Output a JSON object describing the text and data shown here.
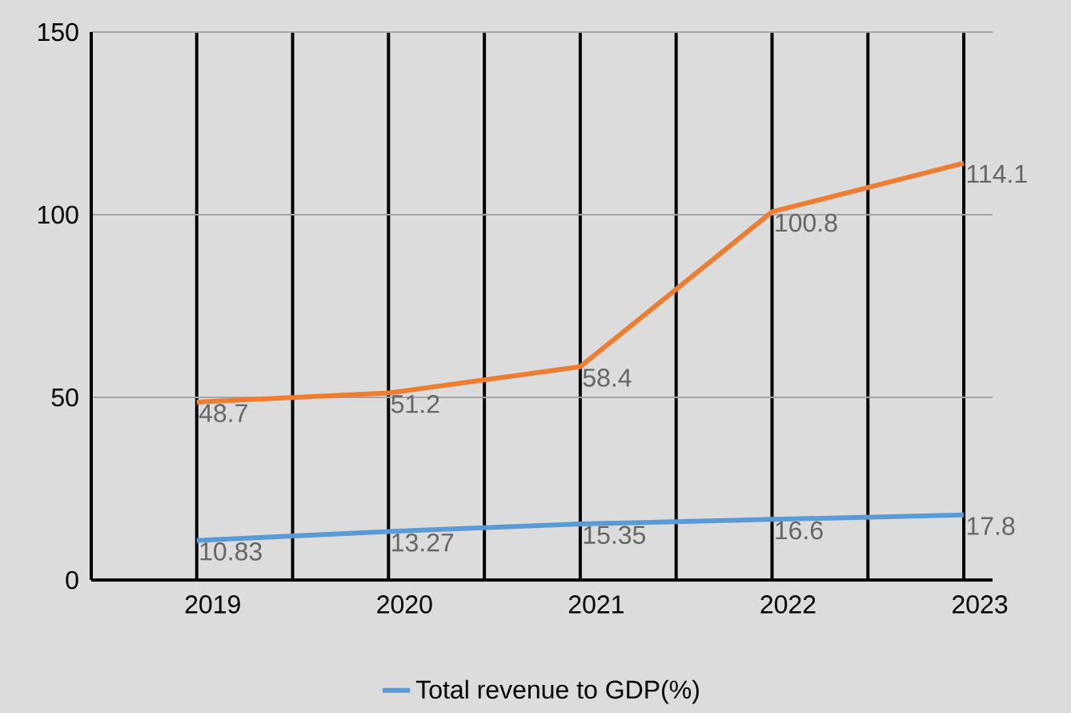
{
  "chart_data": {
    "type": "line",
    "categories": [
      "2019",
      "2020",
      "2021",
      "2022",
      "2023"
    ],
    "series": [
      {
        "color": "#ed7d31",
        "values": [
          48.7,
          51.2,
          58.4,
          100.8,
          114.1
        ]
      },
      {
        "name": "Total revenue to GDP(%)",
        "color": "#5b9bd5",
        "values": [
          10.83,
          13.27,
          15.35,
          16.6,
          17.8
        ]
      }
    ],
    "ylim": [
      0,
      150
    ],
    "yticks": [
      0,
      50,
      100,
      150
    ],
    "grid": true,
    "legend": "bottom",
    "data_labels": true,
    "marker": "none",
    "line_style": "solid"
  }
}
